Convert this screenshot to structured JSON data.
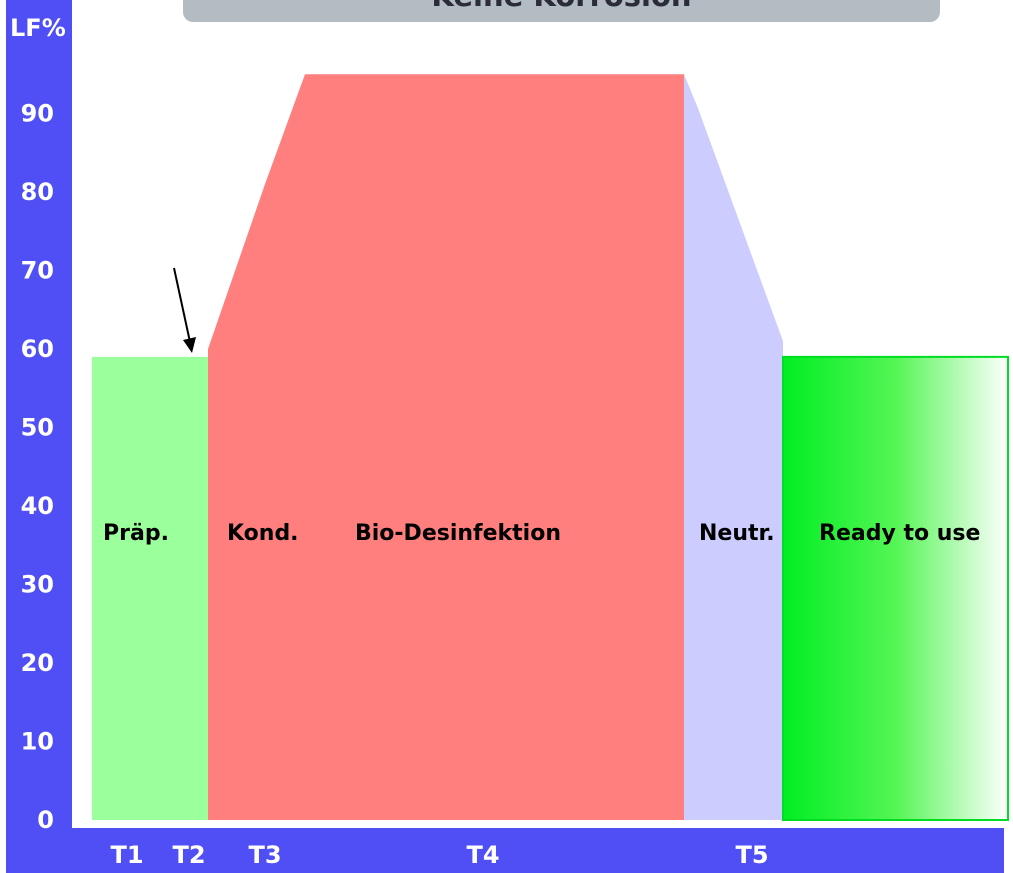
{
  "chart_data": {
    "type": "area",
    "title": "Keine Korrosion",
    "ylabel": "LF%",
    "ylim": [
      0,
      95
    ],
    "y_ticks": [
      "0",
      "10",
      "20",
      "30",
      "40",
      "50",
      "60",
      "70",
      "80",
      "90"
    ],
    "x_ticks": [
      "T1",
      "T2",
      "T3",
      "T4",
      "T5"
    ],
    "phases": [
      {
        "label": "Präp.",
        "level_start": 59,
        "level_end": 59,
        "color": "#9bff9b"
      },
      {
        "label": "Kond.",
        "level_start": 60,
        "level_end": 95,
        "color": "#ff7f7f"
      },
      {
        "label": "Bio-Desinfektion",
        "level_start": 95,
        "level_end": 95,
        "color": "#ff7f7f"
      },
      {
        "label": "Neutr.",
        "level_start": 95,
        "level_end": 61,
        "color": "#ccccff"
      },
      {
        "label": "Ready to use",
        "level_start": 59,
        "level_end": 59,
        "color": "#00ee22"
      }
    ],
    "grid": false
  }
}
